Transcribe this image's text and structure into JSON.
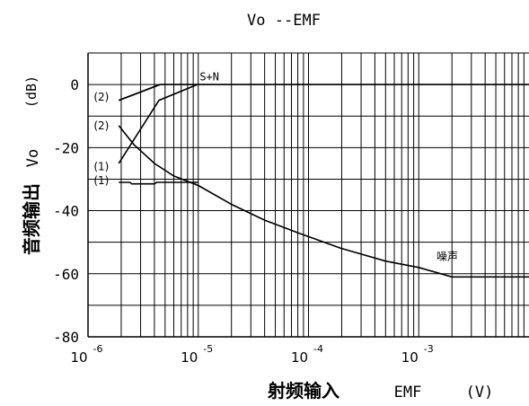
{
  "chart_data": {
    "type": "line",
    "title": "Vo --EMF",
    "xlabel": {
      "cn": "射频输入",
      "unit_label": "EMF",
      "unit": "(V)"
    },
    "ylabel": {
      "cn": "音频输出",
      "name": "Vo",
      "unit": "(dB)"
    },
    "xscale": "log",
    "xlim": [
      1e-06,
      0.01
    ],
    "ylim": [
      -80,
      10
    ],
    "grid": true,
    "yticks": [
      {
        "value": 0,
        "label": "0"
      },
      {
        "value": -20,
        "label": "-20"
      },
      {
        "value": -40,
        "label": "-40"
      },
      {
        "value": -60,
        "label": "-60"
      },
      {
        "value": -80,
        "label": "-80"
      }
    ],
    "xticks": [
      {
        "value": 1e-06,
        "base": "10",
        "exp": "-6"
      },
      {
        "value": 1e-05,
        "base": "10",
        "exp": "-5"
      },
      {
        "value": 0.0001,
        "base": "10",
        "exp": "-4"
      },
      {
        "value": 0.001,
        "base": "10",
        "exp": "-3"
      }
    ],
    "series": [
      {
        "name": "S+N",
        "label_point": [
          1.03e-05,
          2.5
        ],
        "points": [
          [
            1.9e-06,
            -5
          ],
          [
            4.5e-06,
            0
          ],
          [
            0.01,
            0
          ]
        ]
      },
      {
        "name": "(2)",
        "label_point": [
          1.55e-06,
          -4
        ],
        "points": [
          [
            1.9e-06,
            -5
          ],
          [
            4.5e-06,
            0
          ]
        ]
      },
      {
        "name": "(1)",
        "label_point": [
          1.55e-06,
          -26
        ],
        "points": [
          [
            1.9e-06,
            -25
          ],
          [
            4.4e-06,
            -5
          ],
          [
            9.8e-06,
            0
          ]
        ]
      },
      {
        "name": "(2)",
        "label_point": [
          1.55e-06,
          -13
        ],
        "points": [
          [
            1.9e-06,
            -13
          ],
          [
            2.6e-06,
            -19
          ],
          [
            4e-06,
            -25
          ],
          [
            6e-06,
            -29
          ],
          [
            1e-05,
            -32
          ],
          [
            2e-05,
            -38
          ],
          [
            4e-05,
            -43
          ],
          [
            8e-05,
            -47
          ],
          [
            0.0002,
            -52
          ],
          [
            0.0005,
            -56
          ],
          [
            0.001,
            -58
          ],
          [
            0.002,
            -61
          ],
          [
            0.01,
            -61
          ]
        ]
      },
      {
        "name": "(1)",
        "label_point": [
          1.55e-06,
          -30.5
        ],
        "points": [
          [
            1.9e-06,
            -31
          ],
          [
            2.4e-06,
            -31
          ],
          [
            2.5e-06,
            -31.5
          ],
          [
            4e-06,
            -31.5
          ],
          [
            4.2e-06,
            -31
          ],
          [
            1e-05,
            -31
          ]
        ]
      },
      {
        "name": "噪声",
        "label_point": [
          0.00145,
          -54.5
        ],
        "points": []
      }
    ]
  }
}
